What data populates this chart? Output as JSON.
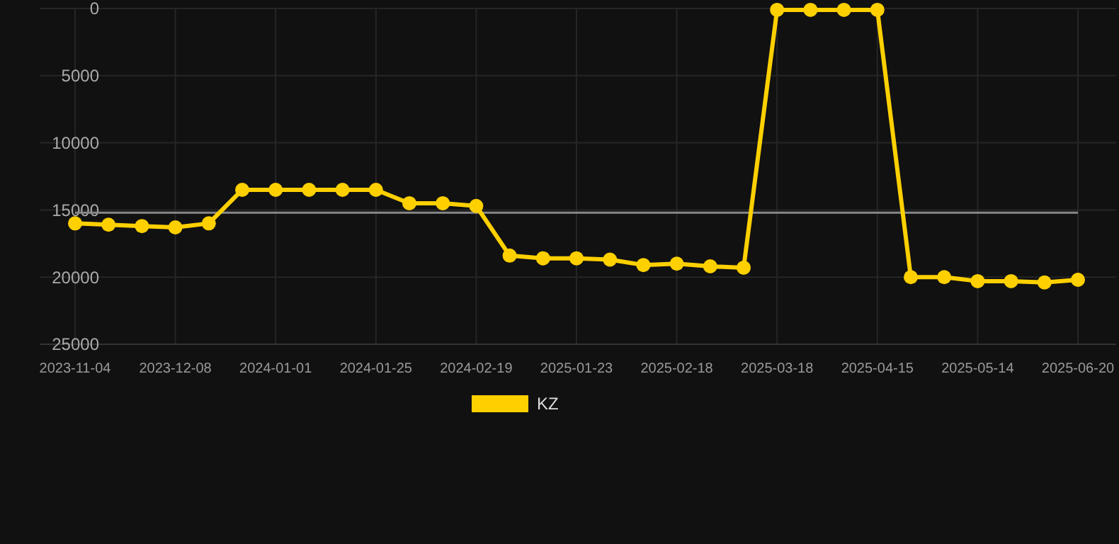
{
  "chart_data": {
    "type": "line",
    "categories": [
      "2023-11-04",
      null,
      null,
      "2023-12-08",
      null,
      null,
      "2024-01-01",
      null,
      null,
      "2024-01-25",
      null,
      null,
      "2024-02-19",
      null,
      null,
      "2025-01-23",
      null,
      null,
      "2025-02-18",
      null,
      null,
      "2025-03-18",
      null,
      null,
      "2025-04-15",
      null,
      null,
      "2025-05-14",
      null,
      null,
      "2025-06-20"
    ],
    "series": [
      {
        "name": "KZ",
        "color": "#ffd000",
        "values": [
          16000,
          16100,
          16200,
          16300,
          16000,
          13500,
          13500,
          13500,
          13500,
          13500,
          14500,
          14500,
          14700,
          18400,
          18600,
          18600,
          18700,
          19100,
          19000,
          19200,
          19300,
          100,
          100,
          100,
          100,
          20000,
          20000,
          20300,
          20300,
          20400,
          20200
        ]
      }
    ],
    "ylim": [
      25000,
      0
    ],
    "yticks": [
      0,
      5000,
      10000,
      15000,
      20000,
      25000
    ],
    "grid": true,
    "legend": "bottom",
    "marker": "circle",
    "line_style": "solid",
    "ref_lines": [
      {
        "axis": "y",
        "value": 15200,
        "color": "#888888"
      }
    ]
  }
}
